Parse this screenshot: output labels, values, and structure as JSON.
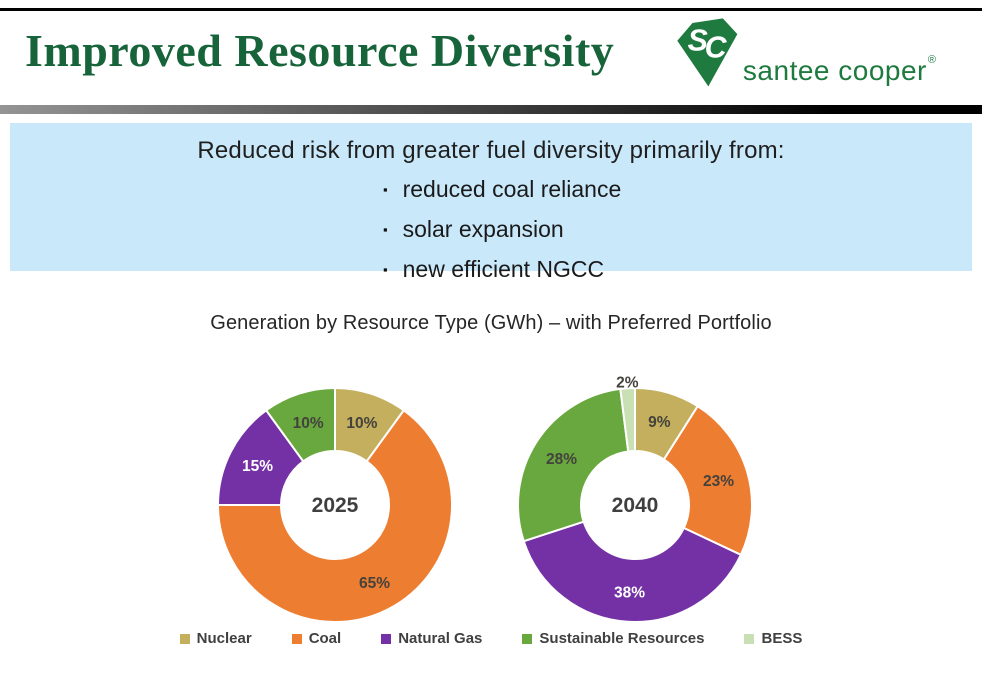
{
  "theme": {
    "title_green": "#17643B",
    "logo_green": "#1E7A3F",
    "callout_blue": "#C9E8FA",
    "label_dark": "#44423C",
    "center_label_color": "#3F3F3F",
    "legend_text": "#404040"
  },
  "header": {
    "title": "Improved Resource Diversity",
    "logo": {
      "monogram": "SC",
      "brand": "santee cooper",
      "registered": "®"
    }
  },
  "callout": {
    "heading": "Reduced risk from greater fuel diversity primarily from:",
    "bullets": [
      "reduced coal reliance",
      "solar expansion",
      "new efficient NGCC"
    ]
  },
  "chart_data": {
    "type": "pie",
    "subtype": "donut",
    "title": "Generation by Resource Type (GWh) – with Preferred Portfolio",
    "legend_position": "bottom",
    "categories": [
      "Nuclear",
      "Coal",
      "Natural Gas",
      "Sustainable Resources",
      "BESS"
    ],
    "legend": [
      {
        "label": "Nuclear",
        "color": "#C3AF5D"
      },
      {
        "label": "Coal",
        "color": "#ED7D31"
      },
      {
        "label": "Natural Gas",
        "color": "#7430A5"
      },
      {
        "label": "Sustainable Resources",
        "color": "#69A83E"
      },
      {
        "label": "BESS",
        "color": "#C9E0B4"
      }
    ],
    "charts": [
      {
        "center_label": "2025",
        "slices": [
          {
            "category": "Nuclear",
            "value_pct": 10,
            "data_label": "10%"
          },
          {
            "category": "Coal",
            "value_pct": 65,
            "data_label": "65%"
          },
          {
            "category": "Natural Gas",
            "value_pct": 15,
            "data_label": "15%",
            "label_color": "#FFFFFF"
          },
          {
            "category": "Sustainable Resources",
            "value_pct": 10,
            "data_label": "10%"
          }
        ]
      },
      {
        "center_label": "2040",
        "slices": [
          {
            "category": "Nuclear",
            "value_pct": 9,
            "data_label": "9%"
          },
          {
            "category": "Coal",
            "value_pct": 23,
            "data_label": "23%"
          },
          {
            "category": "Natural Gas",
            "value_pct": 38,
            "data_label": "38%",
            "label_color": "#FFFFFF"
          },
          {
            "category": "Sustainable Resources",
            "value_pct": 28,
            "data_label": "28%"
          },
          {
            "category": "BESS",
            "value_pct": 2,
            "data_label": "2%",
            "label_outside": true
          }
        ]
      }
    ]
  }
}
